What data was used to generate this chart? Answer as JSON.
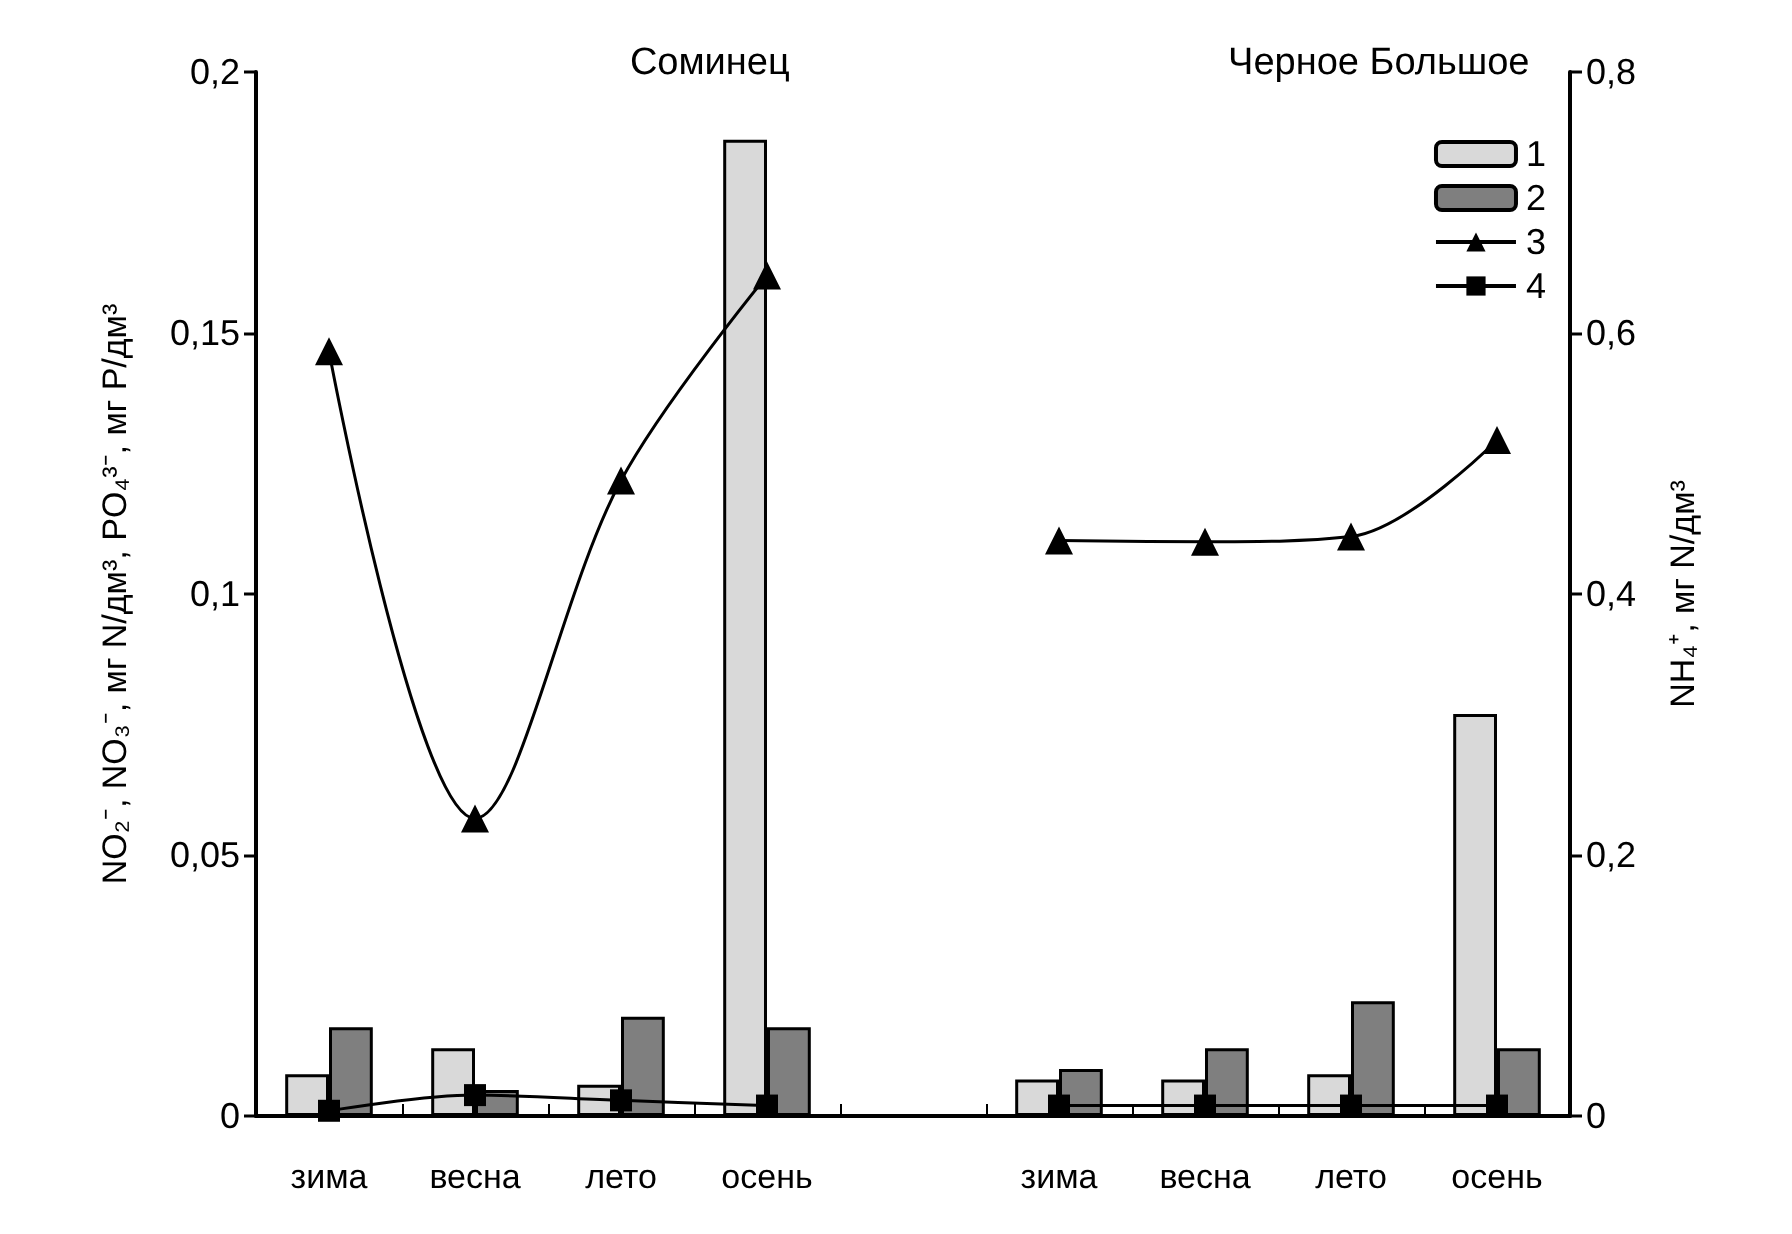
{
  "chart_data": {
    "type": "bar",
    "annotations": [
      "Соминец",
      "Черное Большое"
    ],
    "ylabel": "NO₂⁻, NO₃⁻, мг N/дм³, PO₄³⁻, мг P/дм³",
    "y2label": "NH₄⁺, мг N/дм³",
    "categories": [
      "зима",
      "весна",
      "лето",
      "осень",
      null,
      "зима",
      "весна",
      "лето",
      "осень"
    ],
    "series": [
      {
        "name": "1",
        "color": "#d9d9d9",
        "values": [
          0.008,
          0.013,
          0.006,
          0.187,
          null,
          0.007,
          0.007,
          0.008,
          0.077
        ]
      },
      {
        "name": "2",
        "color": "#7f7f7f",
        "values": [
          0.017,
          0.005,
          0.019,
          0.017,
          null,
          0.009,
          0.013,
          0.022,
          0.013
        ]
      },
      {
        "name": "3",
        "type": "line",
        "axis": "y2",
        "color": "#000000",
        "marker": "triangle",
        "values": [
          0.586,
          0.228,
          0.487,
          0.644,
          null,
          0.441,
          0.44,
          0.444,
          0.518
        ]
      },
      {
        "name": "4",
        "type": "line",
        "color": "#000000",
        "marker": "square",
        "values": [
          0.001,
          0.004,
          0.003,
          0.002,
          null,
          0.002,
          0.002,
          0.002,
          0.002
        ]
      }
    ],
    "ylim": [
      0,
      0.2
    ],
    "yticks": [
      0,
      {
        "value": 0.05,
        "label": "0,05"
      },
      {
        "value": 0.1,
        "label": "0,1"
      },
      {
        "value": 0.15,
        "label": "0,15"
      },
      {
        "value": 0.2,
        "label": "0,2"
      }
    ],
    "y2lim": [
      0,
      0.8
    ],
    "y2ticks": [
      0,
      {
        "value": 0.2,
        "label": "0,2"
      },
      {
        "value": 0.4,
        "label": "0,4"
      },
      {
        "value": 0.6,
        "label": "0,6"
      },
      {
        "value": 0.8,
        "label": "0,8"
      }
    ],
    "grid": false,
    "legend": "top right"
  }
}
